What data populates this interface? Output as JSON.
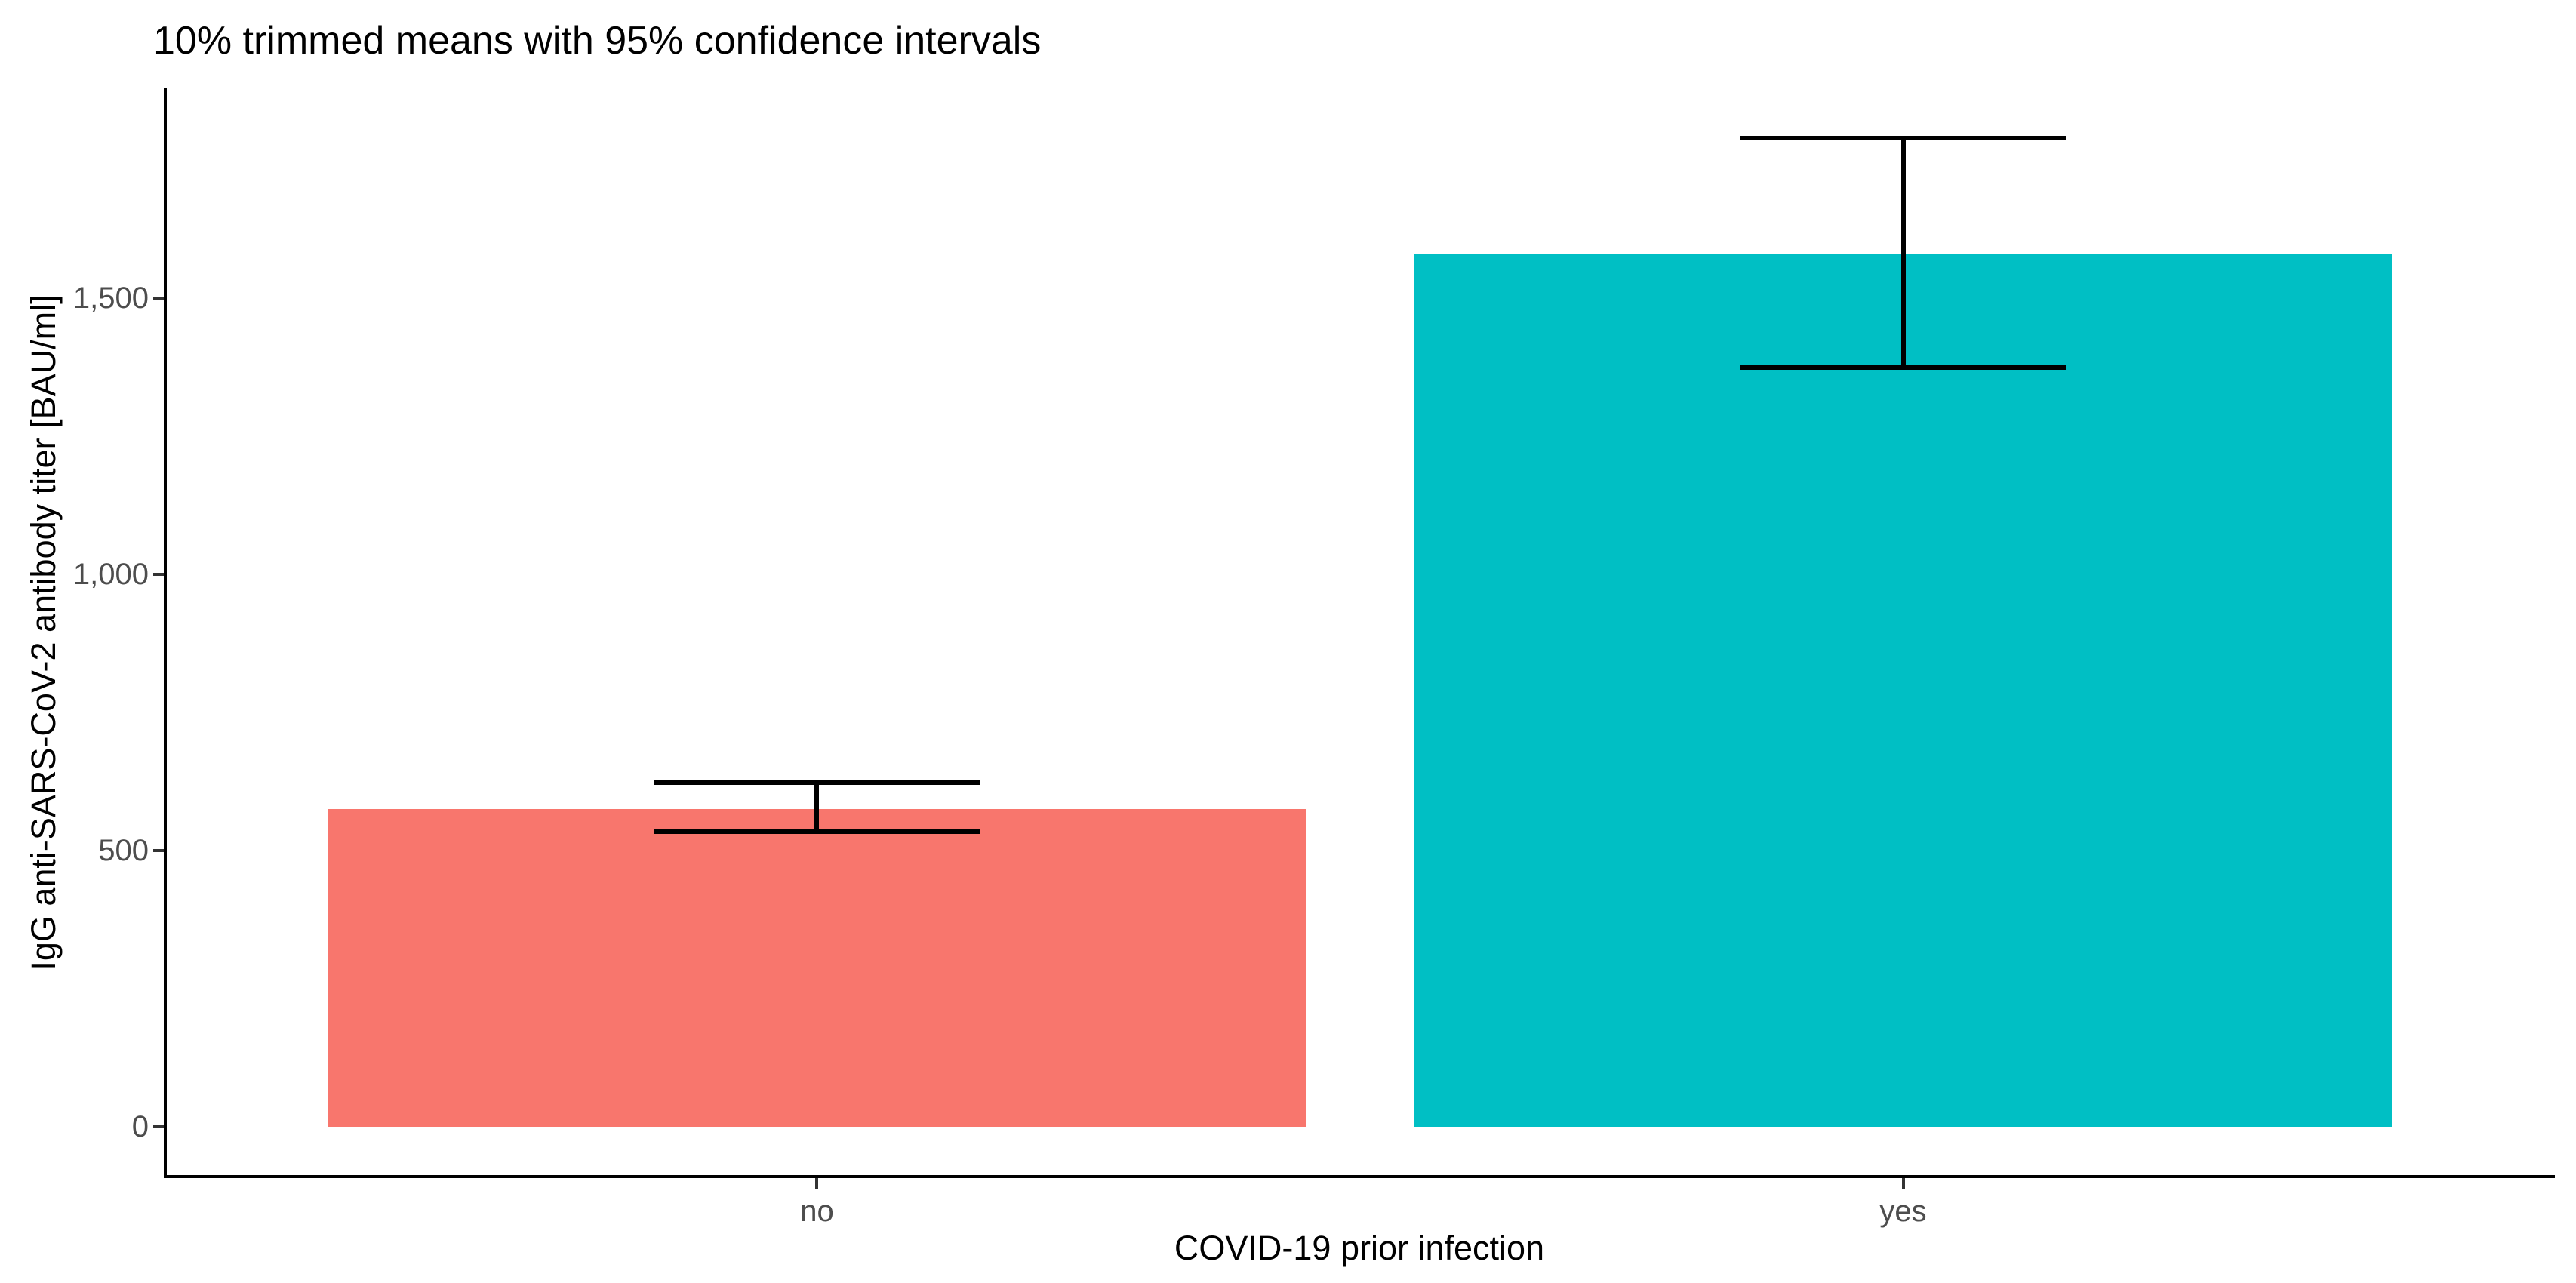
{
  "chart_data": {
    "type": "bar",
    "title": "10% trimmed means with 95% confidence intervals",
    "xlabel": "COVID-19 prior infection",
    "ylabel": "IgG anti-SARS-CoV-2 antibody titer [BAU/ml]",
    "categories": [
      "no",
      "yes"
    ],
    "values": [
      575,
      1580
    ],
    "ci_lower": [
      534,
      1375
    ],
    "ci_upper": [
      623,
      1790
    ],
    "bar_colors": [
      "#F8766D",
      "#00BFC4"
    ],
    "yticks": [
      0,
      500,
      1000,
      1500
    ],
    "ytick_labels": [
      "0",
      "500",
      "1,000",
      "1,500"
    ],
    "ylim": [
      -90,
      1880
    ],
    "grid": "off",
    "legend": "none",
    "error_bars": "95% confidence interval",
    "bar_width_fraction": 0.9,
    "errorbar_cap_fraction": 0.3,
    "colors": {
      "background": "#ffffff",
      "axis_line": "#000000",
      "tick_mark": "#333333",
      "tick_label": "#4d4d4d",
      "axis_title": "#000000",
      "title": "#000000",
      "error_bar": "#000000"
    }
  }
}
